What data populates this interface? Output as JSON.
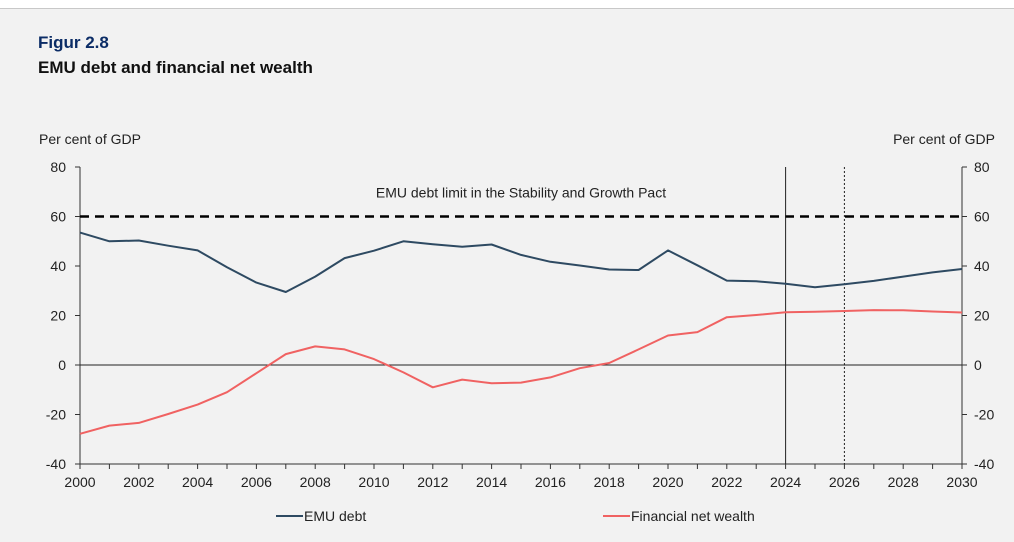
{
  "figure": {
    "label": "Figur 2.8",
    "title": "EMU debt and financial net wealth"
  },
  "chart_data": {
    "type": "line",
    "title": "EMU debt and financial net wealth",
    "ylabel_left": "Per cent of GDP",
    "ylabel_right": "Per cent of GDP",
    "ylim": [
      -40,
      80
    ],
    "yticks": [
      -40,
      -20,
      0,
      20,
      40,
      60,
      80
    ],
    "xlim": [
      2000,
      2030
    ],
    "xticks": [
      2000,
      2002,
      2004,
      2006,
      2008,
      2010,
      2012,
      2014,
      2016,
      2018,
      2020,
      2022,
      2024,
      2026,
      2028,
      2030
    ],
    "x": [
      2000,
      2001,
      2002,
      2003,
      2004,
      2005,
      2006,
      2007,
      2008,
      2009,
      2010,
      2011,
      2012,
      2013,
      2014,
      2015,
      2016,
      2017,
      2018,
      2019,
      2020,
      2021,
      2022,
      2023,
      2024,
      2025,
      2026,
      2027,
      2028,
      2029,
      2030
    ],
    "series": [
      {
        "name": "EMU debt",
        "color": "#2e4a62",
        "values": [
          53.5,
          50,
          50.3,
          48.2,
          46.3,
          39.5,
          33.3,
          29.5,
          35.7,
          43.2,
          46.2,
          50,
          48.8,
          47.8,
          48.7,
          44.5,
          41.7,
          40.2,
          38.6,
          38.4,
          46.3,
          40.3,
          34.1,
          33.8,
          32.8,
          31.4,
          32.6,
          34,
          35.7,
          37.4,
          38.8
        ]
      },
      {
        "name": "Financial net wealth",
        "color": "#f06262",
        "values": [
          -27.8,
          -24.5,
          -23.4,
          -19.8,
          -16,
          -11,
          -3.3,
          4.4,
          7.5,
          6.3,
          2.4,
          -3,
          -9,
          -5.9,
          -7.4,
          -7.1,
          -5,
          -1.3,
          0.8,
          6.3,
          11.9,
          13.3,
          19.3,
          20.2,
          21.3,
          21.5,
          21.8,
          22.2,
          22.1,
          21.6,
          21.2
        ]
      }
    ],
    "annotations": [
      {
        "type": "hline",
        "y": 60,
        "style": "dashed",
        "text": "EMU debt limit in the Stability and Growth Pact"
      },
      {
        "type": "vline",
        "x": 2024,
        "style": "solid"
      },
      {
        "type": "vline",
        "x": 2026,
        "style": "dotted"
      }
    ],
    "legend": "bottom",
    "grid": false
  }
}
